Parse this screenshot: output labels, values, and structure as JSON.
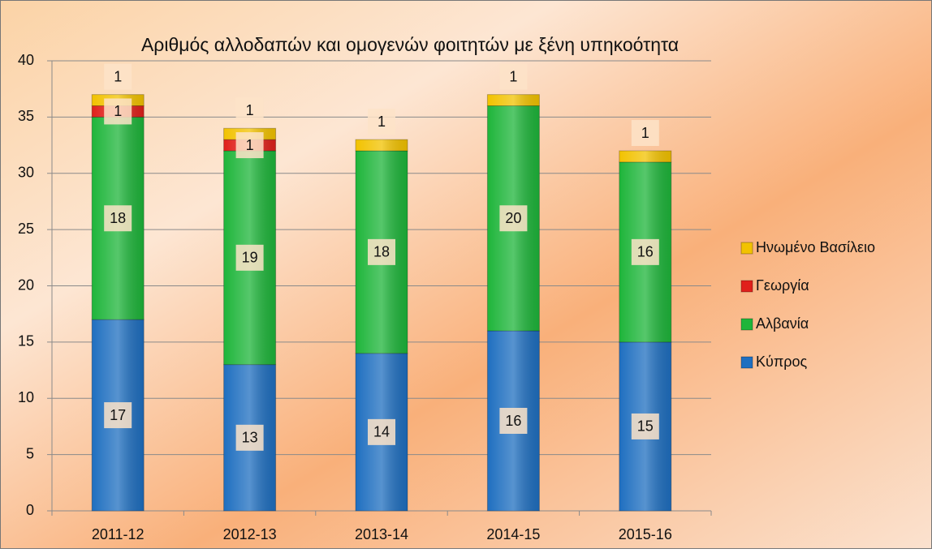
{
  "chart_data": {
    "type": "stacked_bar",
    "title": "Αριθμός αλλοδαπών και ομογενών φοιτητών με ξένη υπηκοότητα",
    "categories": [
      "2011-12",
      "2012-13",
      "2013-14",
      "2014-15",
      "2015-16"
    ],
    "series": [
      {
        "name": "Κύπρος",
        "color": "#1f6fc0",
        "values": [
          17,
          13,
          14,
          16,
          15
        ]
      },
      {
        "name": "Αλβανία",
        "color": "#1eb53a",
        "values": [
          18,
          19,
          18,
          20,
          16
        ]
      },
      {
        "name": "Γεωργία",
        "color": "#e0201b",
        "values": [
          1,
          1,
          null,
          null,
          null
        ]
      },
      {
        "name": "Ηνωμένο Βασίλειο",
        "color": "#f2c200",
        "values": [
          1,
          1,
          1,
          1,
          1
        ]
      }
    ],
    "ylim": [
      0,
      40
    ],
    "yticks": [
      0,
      5,
      10,
      15,
      20,
      25,
      30,
      35,
      40
    ],
    "grid": true,
    "legend": "right"
  }
}
